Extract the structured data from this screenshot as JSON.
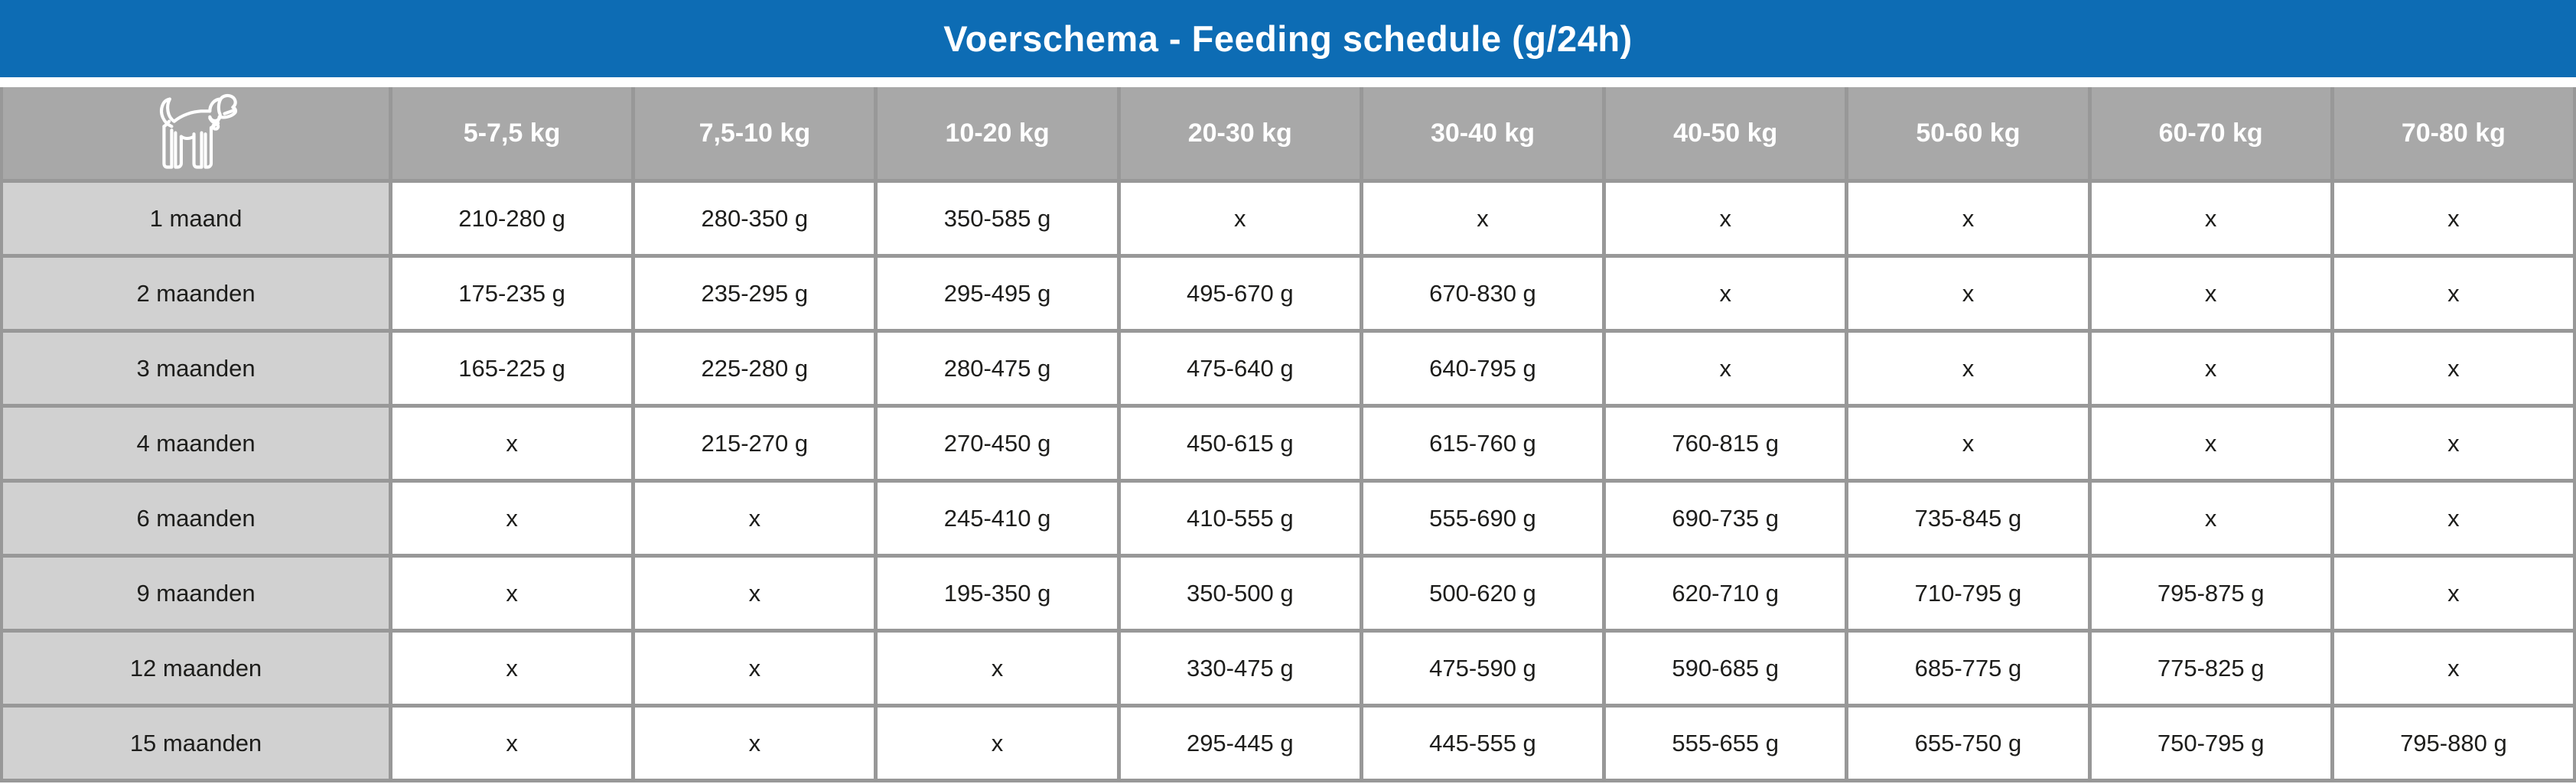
{
  "title": "Voerschema - Feeding schedule (g/24h)",
  "colors": {
    "title_bg": "#0d6cb4",
    "header_bg": "#a8a8a8",
    "label_bg": "#d1d1d1",
    "grid_line": "#989898",
    "cell_bg": "#ffffff",
    "header_text": "#ffffff",
    "cell_text": "#1d1d1b"
  },
  "header": {
    "corner_icon": "dog-icon"
  },
  "chart_data": {
    "type": "table",
    "title": "Voerschema - Feeding schedule (g/24h)",
    "units": "g/24h",
    "no_data_marker": "x",
    "columns": [
      "5-7,5 kg",
      "7,5-10 kg",
      "10-20 kg",
      "20-30 kg",
      "30-40 kg",
      "40-50 kg",
      "50-60 kg",
      "60-70 kg",
      "70-80 kg"
    ],
    "rows": [
      {
        "label": "1 maand",
        "values": [
          "210-280 g",
          "280-350 g",
          "350-585 g",
          "x",
          "x",
          "x",
          "x",
          "x",
          "x"
        ]
      },
      {
        "label": "2 maanden",
        "values": [
          "175-235 g",
          "235-295 g",
          "295-495 g",
          "495-670 g",
          "670-830 g",
          "x",
          "x",
          "x",
          "x"
        ]
      },
      {
        "label": "3 maanden",
        "values": [
          "165-225 g",
          "225-280 g",
          "280-475 g",
          "475-640 g",
          "640-795 g",
          "x",
          "x",
          "x",
          "x"
        ]
      },
      {
        "label": "4 maanden",
        "values": [
          "x",
          "215-270 g",
          "270-450 g",
          "450-615 g",
          "615-760 g",
          "760-815 g",
          "x",
          "x",
          "x"
        ]
      },
      {
        "label": "6 maanden",
        "values": [
          "x",
          "x",
          "245-410 g",
          "410-555 g",
          "555-690 g",
          "690-735 g",
          "735-845 g",
          "x",
          "x"
        ]
      },
      {
        "label": "9 maanden",
        "values": [
          "x",
          "x",
          "195-350 g",
          "350-500 g",
          "500-620 g",
          "620-710 g",
          "710-795 g",
          "795-875 g",
          "x"
        ]
      },
      {
        "label": "12 maanden",
        "values": [
          "x",
          "x",
          "x",
          "330-475 g",
          "475-590 g",
          "590-685 g",
          "685-775 g",
          "775-825 g",
          "x"
        ]
      },
      {
        "label": "15 maanden",
        "values": [
          "x",
          "x",
          "x",
          "295-445 g",
          "445-555 g",
          "555-655 g",
          "655-750 g",
          "750-795 g",
          "795-880 g"
        ]
      }
    ]
  }
}
